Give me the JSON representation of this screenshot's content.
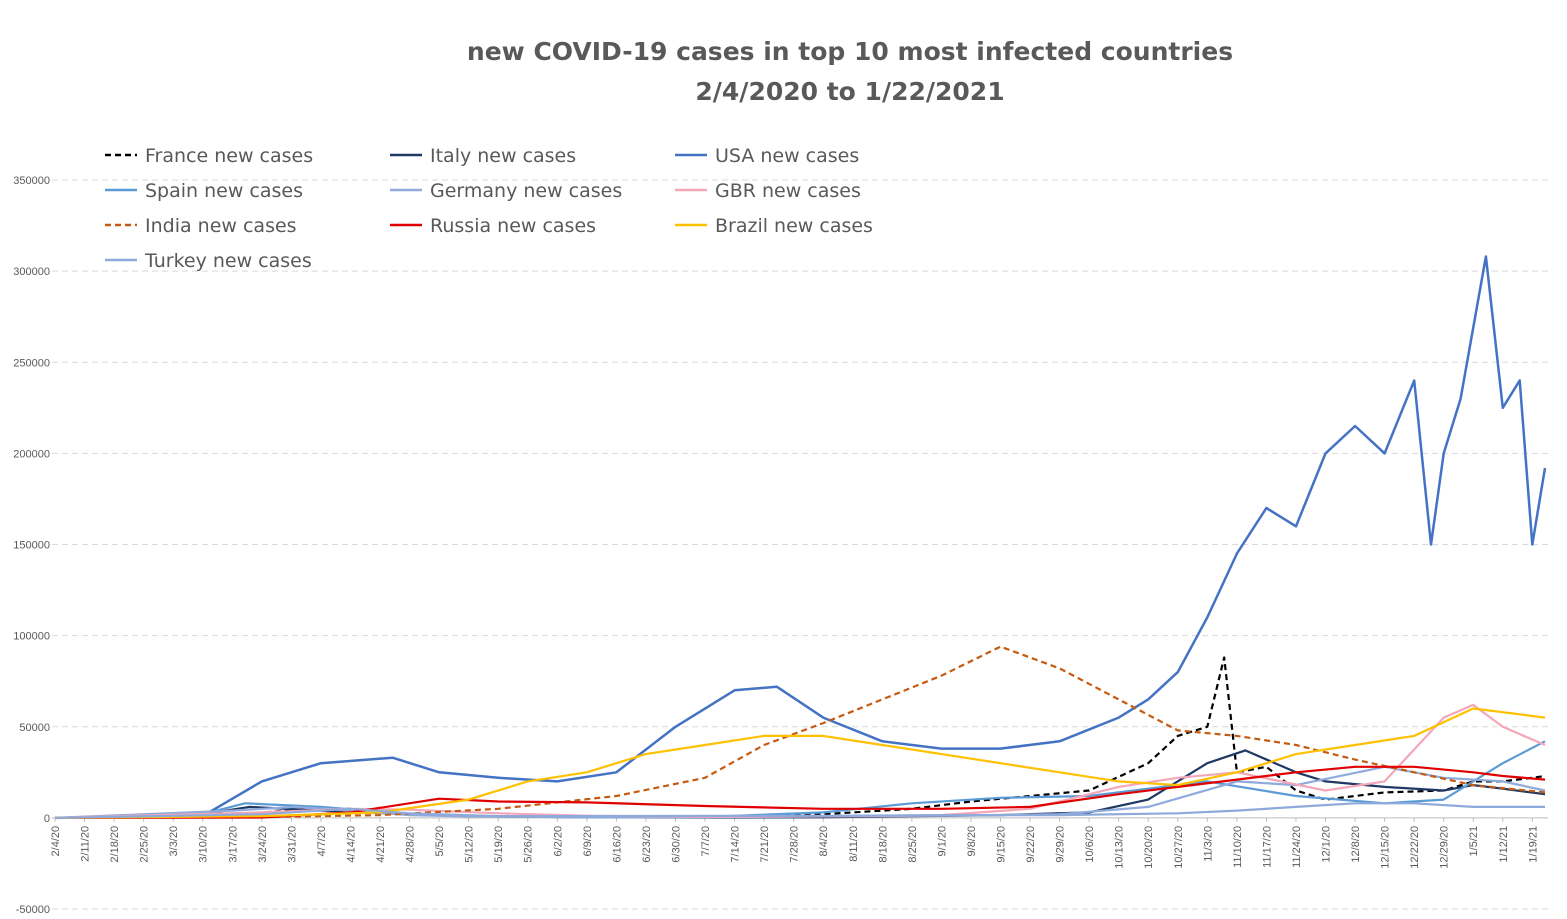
{
  "chart_data": {
    "type": "line",
    "title": "new COVID-19 cases in top 10 most infected countries",
    "subtitle": "2/4/2020 to 1/22/2021",
    "xlabel": "",
    "ylabel": "",
    "ylim": [
      -50000,
      350000
    ],
    "yticks": [
      "350000",
      "300000",
      "250000",
      "200000",
      "150000",
      "100000",
      "50000",
      "0",
      "-50000"
    ],
    "ytick_values": [
      350000,
      300000,
      250000,
      200000,
      150000,
      100000,
      50000,
      0,
      -50000
    ],
    "grid": true,
    "legend_position": "top-left",
    "x_tick_labels": [
      "2/4/20",
      "2/11/20",
      "2/18/20",
      "2/25/20",
      "3/3/20",
      "3/10/20",
      "3/17/20",
      "3/24/20",
      "3/31/20",
      "4/7/20",
      "4/14/20",
      "4/21/20",
      "4/28/20",
      "5/5/20",
      "5/12/20",
      "5/19/20",
      "5/26/20",
      "6/2/20",
      "6/9/20",
      "6/16/20",
      "6/23/20",
      "6/30/20",
      "7/7/20",
      "7/14/20",
      "7/21/20",
      "7/28/20",
      "8/4/20",
      "8/11/20",
      "8/18/20",
      "8/25/20",
      "9/1/20",
      "9/8/20",
      "9/15/20",
      "9/22/20",
      "9/29/20",
      "10/6/20",
      "10/13/20",
      "10/20/20",
      "10/27/20",
      "11/3/20",
      "11/10/20",
      "11/17/20",
      "11/24/20",
      "12/1/20",
      "12/8/20",
      "12/15/20",
      "12/22/20",
      "12/29/20",
      "1/5/21",
      "1/12/21",
      "1/19/21"
    ],
    "x_start": "2/4/20",
    "x_end": "1/22/21",
    "series": [
      {
        "name": "France new cases",
        "color": "#000000",
        "dash": "dashed",
        "x": [
          "2/4/20",
          "3/17/20",
          "3/31/20",
          "4/14/20",
          "4/28/20",
          "5/12/20",
          "6/9/20",
          "7/7/20",
          "8/4/20",
          "8/25/20",
          "9/8/20",
          "9/22/20",
          "10/6/20",
          "10/20/20",
          "10/27/20",
          "11/3/20",
          "11/7/20",
          "11/10/20",
          "11/17/20",
          "11/24/20",
          "12/1/20",
          "12/15/20",
          "12/29/20",
          "1/5/21",
          "1/12/21",
          "1/19/21",
          "1/22/21"
        ],
        "y": [
          0,
          2000,
          4000,
          5000,
          2000,
          1000,
          500,
          600,
          2000,
          5000,
          9000,
          12000,
          15000,
          30000,
          45000,
          50000,
          88000,
          25000,
          28000,
          15000,
          10000,
          14000,
          15000,
          20000,
          20000,
          22000,
          23000
        ]
      },
      {
        "name": "Italy new cases",
        "color": "#1f3864",
        "dash": "solid",
        "x": [
          "2/4/20",
          "3/10/20",
          "3/21/20",
          "4/7/20",
          "4/28/20",
          "5/12/20",
          "6/9/20",
          "7/7/20",
          "8/4/20",
          "8/25/20",
          "9/15/20",
          "10/6/20",
          "10/20/20",
          "11/3/20",
          "11/12/20",
          "11/24/20",
          "12/1/20",
          "12/15/20",
          "12/29/20",
          "1/5/21",
          "1/12/21",
          "1/22/21"
        ],
        "y": [
          0,
          2000,
          6000,
          4000,
          2000,
          1000,
          300,
          200,
          300,
          1000,
          1500,
          3000,
          10000,
          30000,
          37000,
          25000,
          20000,
          17000,
          15000,
          18000,
          16000,
          13000
        ]
      },
      {
        "name": "USA new cases",
        "color": "#4472c4",
        "dash": "solid",
        "x": [
          "2/4/20",
          "3/10/20",
          "3/24/20",
          "4/7/20",
          "4/24/20",
          "5/5/20",
          "5/19/20",
          "6/2/20",
          "6/16/20",
          "6/30/20",
          "7/14/20",
          "7/24/20",
          "8/4/20",
          "8/18/20",
          "8/25/20",
          "9/1/20",
          "9/15/20",
          "9/29/20",
          "10/13/20",
          "10/20/20",
          "10/27/20",
          "11/3/20",
          "11/10/20",
          "11/17/20",
          "11/24/20",
          "12/1/20",
          "12/8/20",
          "12/15/20",
          "12/22/20",
          "12/26/20",
          "12/29/20",
          "1/2/21",
          "1/8/21",
          "1/12/21",
          "1/16/21",
          "1/19/21",
          "1/22/21"
        ],
        "y": [
          0,
          1000,
          20000,
          30000,
          33000,
          25000,
          22000,
          20000,
          25000,
          50000,
          70000,
          72000,
          55000,
          42000,
          40000,
          38000,
          38000,
          42000,
          55000,
          65000,
          80000,
          110000,
          145000,
          170000,
          160000,
          200000,
          215000,
          200000,
          240000,
          150000,
          200000,
          230000,
          308000,
          225000,
          240000,
          150000,
          192000
        ]
      },
      {
        "name": "Spain new cases",
        "color": "#5b9bd5",
        "dash": "solid",
        "x": [
          "2/4/20",
          "3/10/20",
          "3/20/20",
          "4/7/20",
          "4/28/20",
          "5/12/20",
          "6/9/20",
          "7/7/20",
          "8/4/20",
          "8/25/20",
          "9/15/20",
          "10/6/20",
          "10/20/20",
          "11/3/20",
          "11/24/20",
          "12/15/20",
          "12/29/20",
          "1/12/21",
          "1/22/21"
        ],
        "y": [
          0,
          2000,
          8000,
          6000,
          2000,
          1000,
          300,
          500,
          3000,
          8000,
          11000,
          12000,
          16000,
          20000,
          12000,
          8000,
          10000,
          30000,
          42000
        ]
      },
      {
        "name": "Germany new cases",
        "color": "#8faadc",
        "dash": "solid",
        "x": [
          "2/4/20",
          "3/17/20",
          "4/1/20",
          "4/14/20",
          "4/28/20",
          "5/12/20",
          "6/9/20",
          "7/7/20",
          "8/4/20",
          "9/1/20",
          "9/29/20",
          "10/20/20",
          "11/10/20",
          "11/24/20",
          "12/15/20",
          "12/29/20",
          "1/12/21",
          "1/22/21"
        ],
        "y": [
          0,
          4000,
          6000,
          4000,
          1500,
          800,
          300,
          400,
          800,
          1200,
          2000,
          6000,
          20000,
          18000,
          28000,
          22000,
          20000,
          15000
        ]
      },
      {
        "name": "GBR new cases",
        "color": "#f4a7b9",
        "dash": "solid",
        "x": [
          "2/4/20",
          "3/24/20",
          "4/14/20",
          "4/28/20",
          "5/19/20",
          "6/9/20",
          "7/7/20",
          "8/4/20",
          "9/1/20",
          "9/22/20",
          "10/13/20",
          "10/27/20",
          "11/10/20",
          "12/1/20",
          "12/15/20",
          "12/29/20",
          "1/5/21",
          "1/12/21",
          "1/22/21"
        ],
        "y": [
          0,
          3000,
          5000,
          4500,
          2500,
          1200,
          600,
          800,
          1500,
          5000,
          17000,
          22000,
          25000,
          15000,
          20000,
          55000,
          62000,
          50000,
          40000
        ]
      },
      {
        "name": "India new cases",
        "color": "#c55a11",
        "dash": "dashed",
        "x": [
          "2/4/20",
          "3/24/20",
          "4/21/20",
          "5/19/20",
          "6/16/20",
          "7/7/20",
          "7/21/20",
          "8/4/20",
          "8/18/20",
          "9/1/20",
          "9/15/20",
          "9/29/20",
          "10/13/20",
          "10/27/20",
          "11/10/20",
          "11/24/20",
          "12/8/20",
          "12/22/20",
          "1/5/21",
          "1/22/21"
        ],
        "y": [
          0,
          500,
          1500,
          5000,
          12000,
          22000,
          40000,
          52000,
          65000,
          78000,
          94000,
          82000,
          65000,
          48000,
          45000,
          40000,
          32000,
          25000,
          18000,
          14000
        ]
      },
      {
        "name": "Russia new cases",
        "color": "#e00000",
        "dash": "solid",
        "x": [
          "2/4/20",
          "3/24/20",
          "4/14/20",
          "5/5/20",
          "5/19/20",
          "6/9/20",
          "7/7/20",
          "8/4/20",
          "9/1/20",
          "9/22/20",
          "10/13/20",
          "10/27/20",
          "11/10/20",
          "11/24/20",
          "12/8/20",
          "12/22/20",
          "1/5/21",
          "1/12/21",
          "1/22/21"
        ],
        "y": [
          0,
          200,
          3000,
          10500,
          9000,
          8500,
          6500,
          5000,
          5000,
          6000,
          13000,
          17000,
          21000,
          25000,
          28000,
          28000,
          25000,
          23000,
          21000
        ]
      },
      {
        "name": "Brazil new cases",
        "color": "#ffc000",
        "dash": "solid",
        "x": [
          "2/4/20",
          "3/24/20",
          "4/21/20",
          "5/12/20",
          "5/26/20",
          "6/9/20",
          "6/23/20",
          "7/7/20",
          "7/21/20",
          "8/4/20",
          "8/18/20",
          "9/1/20",
          "9/15/20",
          "9/29/20",
          "10/13/20",
          "10/27/20",
          "11/10/20",
          "11/24/20",
          "12/8/20",
          "12/22/20",
          "1/5/21",
          "1/12/21",
          "1/22/21"
        ],
        "y": [
          0,
          1000,
          3000,
          10000,
          20000,
          25000,
          35000,
          40000,
          45000,
          45000,
          40000,
          35000,
          30000,
          25000,
          20000,
          18000,
          25000,
          35000,
          40000,
          45000,
          60000,
          58000,
          55000
        ]
      },
      {
        "name": "Turkey new cases",
        "color": "#8eaadb",
        "dash": "solid",
        "x": [
          "2/4/20",
          "3/24/20",
          "4/14/20",
          "4/28/20",
          "5/19/20",
          "6/9/20",
          "7/7/20",
          "8/4/20",
          "9/1/20",
          "9/29/20",
          "10/27/20",
          "11/10/20",
          "11/24/20",
          "12/8/20",
          "12/22/20",
          "1/5/21",
          "1/22/21"
        ],
        "y": [
          0,
          2000,
          5000,
          2500,
          1000,
          1000,
          1100,
          1100,
          1500,
          1500,
          2500,
          4000,
          6000,
          8000,
          8000,
          6000,
          6000
        ]
      }
    ]
  }
}
